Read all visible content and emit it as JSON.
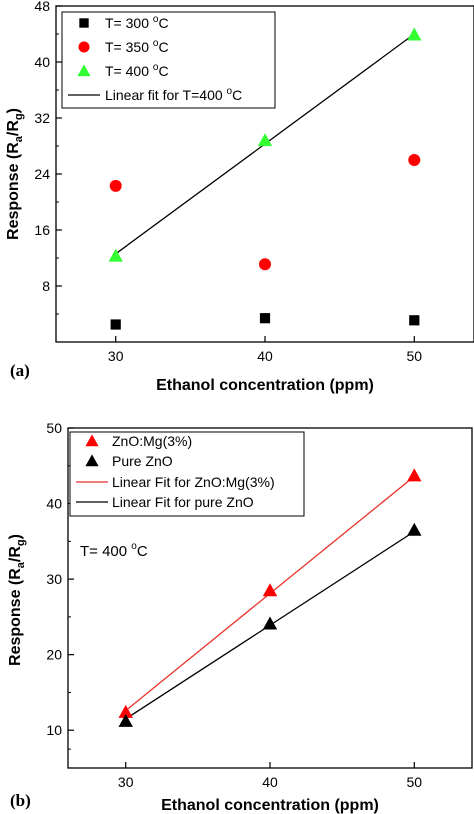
{
  "colors": {
    "black": "#000000",
    "red": "#ff0000",
    "green": "#33ff33",
    "red_line": "#e8312a"
  },
  "chart_data": [
    {
      "type": "scatter",
      "panel_label": "(a)",
      "xlabel": "Ethanol concentration (ppm)",
      "ylabel": {
        "base": "Response (R",
        "sub1": "a",
        "mid": "/R",
        "sub2": "g",
        "end": ")"
      },
      "xlim": [
        26,
        54
      ],
      "ylim": [
        0,
        48
      ],
      "xticks": [
        30,
        40,
        50
      ],
      "yticks": [
        8,
        16,
        24,
        32,
        40,
        48
      ],
      "grid": false,
      "legend_position": "top-left",
      "series": [
        {
          "name": "T= 300 °C",
          "legend_base": "T= 300 ",
          "legend_sup": "o",
          "legend_unit": "C",
          "marker": "square",
          "color": "#000000",
          "x": [
            30,
            40,
            50
          ],
          "y": [
            2.5,
            3.4,
            3.1
          ]
        },
        {
          "name": "T= 350 °C",
          "legend_base": "T= 350 ",
          "legend_sup": "o",
          "legend_unit": "C",
          "marker": "circle",
          "color": "#ff0000",
          "x": [
            30,
            40,
            50
          ],
          "y": [
            22.3,
            11.1,
            26.0
          ]
        },
        {
          "name": "T= 400 °C",
          "legend_base": "T= 400 ",
          "legend_sup": "o",
          "legend_unit": "C",
          "marker": "triangle",
          "color": "#33ff33",
          "x": [
            30,
            40,
            50
          ],
          "y": [
            12.3,
            28.8,
            43.9
          ]
        }
      ],
      "fit_lines": [
        {
          "name": "Linear fit for T=400 °C",
          "legend_base": "Linear fit for T=400 ",
          "legend_sup": "o",
          "legend_unit": "C",
          "color": "#000000",
          "x": [
            30,
            50
          ],
          "y": [
            12.6,
            44.0
          ]
        }
      ]
    },
    {
      "type": "scatter",
      "panel_label": "(b)",
      "xlabel": "Ethanol concentration (ppm)",
      "ylabel": {
        "base": "Response (R",
        "sub1": "a",
        "mid": "/R",
        "sub2": "g",
        "end": ")"
      },
      "xlim": [
        26,
        54
      ],
      "ylim": [
        5,
        50
      ],
      "xticks": [
        30,
        40,
        50
      ],
      "yticks": [
        10,
        20,
        30,
        40,
        50
      ],
      "grid": false,
      "legend_position": "top-left",
      "annotation": {
        "base": "T= 400 ",
        "sup": "o",
        "unit": "C"
      },
      "series": [
        {
          "name": "ZnO:Mg(3%)",
          "marker": "triangle",
          "color": "#ff0000",
          "x": [
            30,
            40,
            50
          ],
          "y": [
            12.4,
            28.5,
            43.7
          ]
        },
        {
          "name": "Pure ZnO",
          "marker": "triangle",
          "color": "#000000",
          "x": [
            30,
            40,
            50
          ],
          "y": [
            11.2,
            24.1,
            36.5
          ]
        }
      ],
      "fit_lines": [
        {
          "name": "Linear Fit for ZnO:Mg(3%)",
          "color": "#e8312a",
          "x": [
            30,
            50
          ],
          "y": [
            12.6,
            43.6
          ]
        },
        {
          "name": "Linear Fit for pure ZnO",
          "color": "#000000",
          "x": [
            30,
            50
          ],
          "y": [
            11.5,
            36.3
          ]
        }
      ]
    }
  ]
}
